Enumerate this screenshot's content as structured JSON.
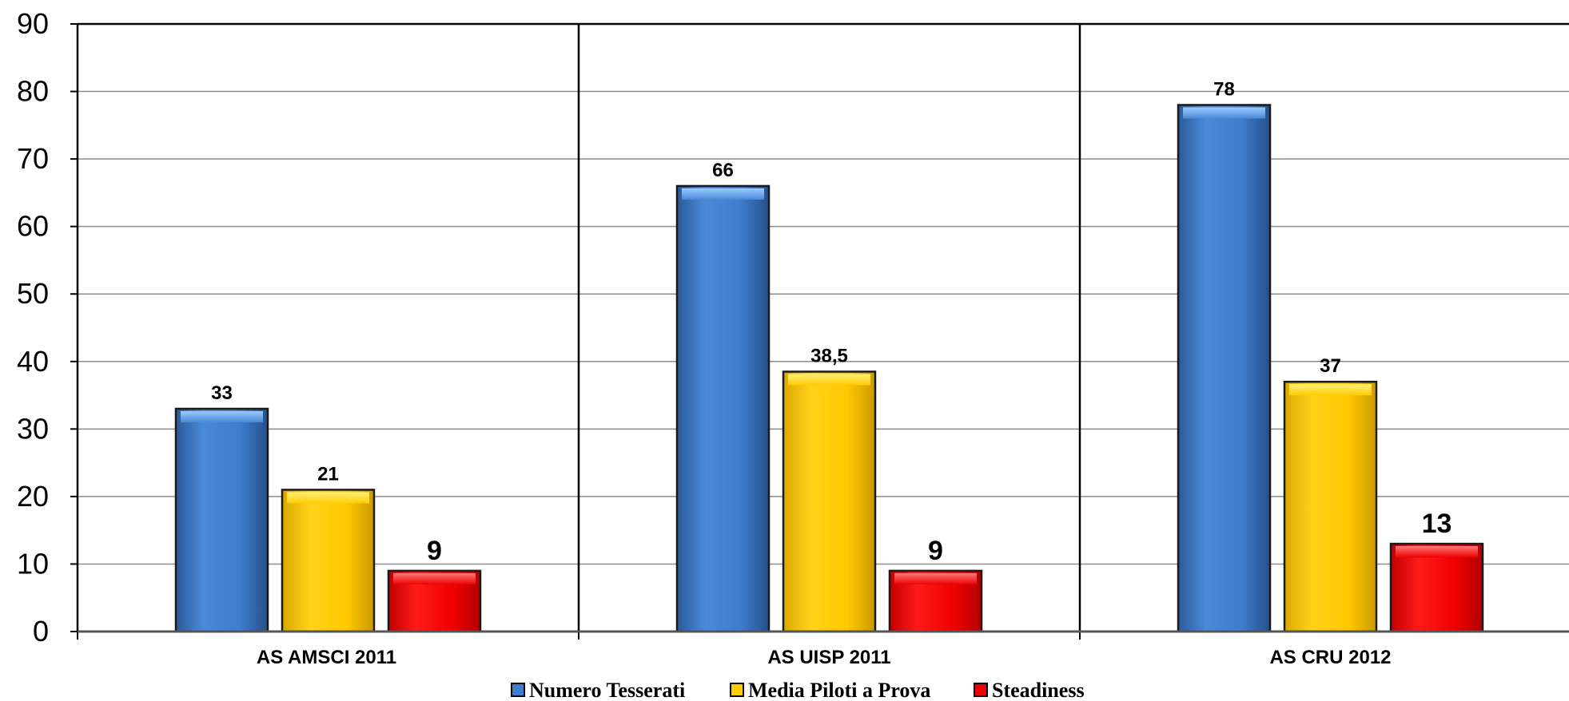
{
  "chart_data": {
    "type": "bar",
    "title": "",
    "xlabel": "",
    "ylabel": "",
    "ylim": [
      0,
      90
    ],
    "yticks": [
      0,
      10,
      20,
      30,
      40,
      50,
      60,
      70,
      80,
      90
    ],
    "grid": true,
    "legend_position": "bottom",
    "categories": [
      "AS AMSCI 2011",
      "AS UISP 2011",
      "AS CRU 2012"
    ],
    "series": [
      {
        "name": "Numero Tesserati",
        "color": "#3F7FD0",
        "values": [
          33,
          66,
          78
        ],
        "labels": [
          "33",
          "66",
          "78"
        ]
      },
      {
        "name": "Media Piloti a Prova",
        "color": "#FFCC00",
        "values": [
          21,
          38.5,
          37
        ],
        "labels": [
          "21",
          "38,5",
          "37"
        ]
      },
      {
        "name": "Steadiness",
        "color": "#F00000",
        "values": [
          9,
          9,
          13
        ],
        "labels": [
          "9",
          "9",
          "13"
        ]
      }
    ]
  }
}
